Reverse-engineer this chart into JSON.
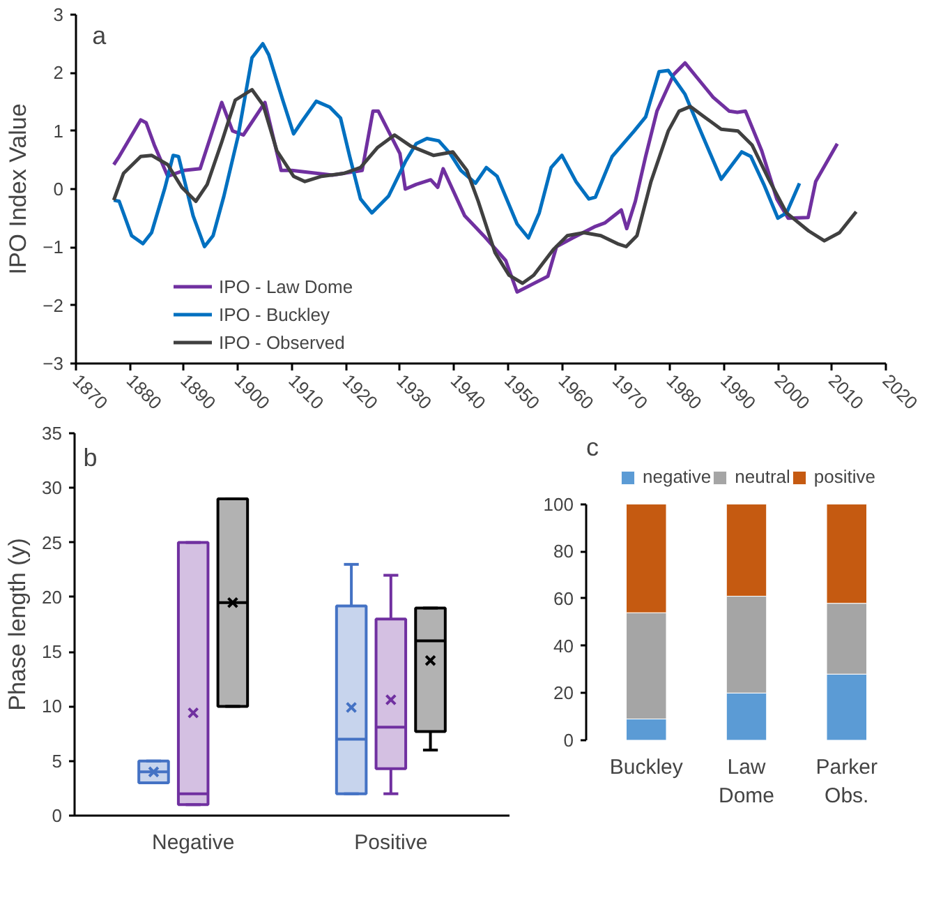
{
  "chart_data": [
    {
      "type": "line",
      "title": "a",
      "ylabel": "IPO Index Value",
      "xlim": [
        1870,
        2020
      ],
      "xticks": [
        1870,
        1880,
        1890,
        1900,
        1910,
        1920,
        1930,
        1940,
        1950,
        1960,
        1970,
        1980,
        1990,
        2000,
        2010,
        2020
      ],
      "ylim": [
        -3,
        3
      ],
      "yticks": [
        -3,
        -2,
        -1,
        0,
        1,
        2,
        3
      ],
      "legend": "bottom left",
      "series": [
        {
          "name": "IPO - Law Dome",
          "color": "#7030a0",
          "x": [
            1877,
            1878,
            1882,
            1883,
            1884.5,
            1887,
            1890,
            1893,
            1897,
            1899,
            1901,
            1905,
            1908,
            1910,
            1917.5,
            1923,
            1925,
            1926,
            1930,
            1931,
            1933,
            1935.7,
            1937,
            1938,
            1942,
            1945.5,
            1949.6,
            1951.7,
            1953.8,
            1957.4,
            1959,
            1962,
            1966,
            1968,
            1971,
            1972,
            1973.6,
            1975.5,
            1977.6,
            1980.7,
            1982.8,
            1985,
            1988,
            1991,
            1992.5,
            1994,
            1997,
            1999.8,
            2001.9,
            2005.6,
            2007,
            2011
          ],
          "values": [
            0.42,
            0.56,
            1.19,
            1.14,
            0.76,
            0.22,
            0.32,
            0.35,
            1.49,
            1.0,
            0.93,
            1.49,
            0.32,
            0.32,
            0.24,
            0.32,
            1.34,
            1.34,
            0.61,
            0,
            0.08,
            0.16,
            0.03,
            0.35,
            -0.46,
            -0.8,
            -1.23,
            -1.77,
            -1.67,
            -1.5,
            -0.99,
            -0.84,
            -0.65,
            -0.58,
            -0.36,
            -0.68,
            -0.21,
            0.56,
            1.34,
            1.97,
            2.17,
            1.92,
            1.58,
            1.34,
            1.32,
            1.34,
            0.66,
            -0.17,
            -0.5,
            -0.49,
            0.13,
            0.78
          ]
        },
        {
          "name": "IPO - Buckley",
          "color": "#0070c0",
          "x": [
            1877,
            1878,
            1880.3,
            1882.4,
            1884,
            1886.5,
            1888,
            1889,
            1891.7,
            1893.8,
            1895.4,
            1897.4,
            1900,
            1902.6,
            1904.6,
            1905.7,
            1908.3,
            1910.3,
            1911.9,
            1914.5,
            1917,
            1919,
            1920.7,
            1922.7,
            1924.8,
            1927.9,
            1931,
            1933,
            1935,
            1937.2,
            1939.3,
            1941.3,
            1944,
            1946,
            1948,
            1951.7,
            1953.8,
            1955.8,
            1958,
            1960,
            1962.6,
            1965,
            1966.2,
            1969.3,
            1973.4,
            1975.5,
            1978,
            1979.7,
            1982.8,
            1985.9,
            1989.5,
            1993.3,
            1995,
            1997.4,
            2000,
            2001.6,
            2004
          ],
          "values": [
            -0.19,
            -0.21,
            -0.8,
            -0.94,
            -0.75,
            0.03,
            0.58,
            0.56,
            -0.46,
            -0.99,
            -0.8,
            -0.12,
            0.9,
            2.26,
            2.5,
            2.31,
            1.53,
            0.95,
            1.17,
            1.51,
            1.41,
            1.22,
            0.56,
            -0.17,
            -0.41,
            -0.12,
            0.47,
            0.78,
            0.87,
            0.83,
            0.61,
            0.32,
            0.1,
            0.37,
            0.22,
            -0.6,
            -0.84,
            -0.41,
            0.37,
            0.58,
            0.13,
            -0.17,
            -0.14,
            0.56,
            1.0,
            1.24,
            2.02,
            2.04,
            1.63,
            0.95,
            0.17,
            0.64,
            0.56,
            0.08,
            -0.5,
            -0.41,
            0.1
          ]
        },
        {
          "name": "IPO - Observed",
          "color": "#404040",
          "x": [
            1877,
            1878.8,
            1882,
            1884,
            1887,
            1889.6,
            1892.2,
            1894.3,
            1897,
            1899.5,
            1902.6,
            1904.7,
            1907.2,
            1910.3,
            1912.4,
            1915.5,
            1919.6,
            1922.7,
            1925.8,
            1929,
            1932,
            1936.2,
            1939.8,
            1942.4,
            1944.5,
            1947.6,
            1950.2,
            1952.7,
            1954.8,
            1958.4,
            1961,
            1964.1,
            1967.2,
            1970.3,
            1971.9,
            1973.9,
            1976.5,
            1979.7,
            1981.7,
            1983.8,
            1986.4,
            1989.5,
            1992.6,
            1995.2,
            1998.3,
            2001.6,
            2005.7,
            2008.6,
            2011.4,
            2014.5
          ],
          "values": [
            -0.19,
            0.27,
            0.56,
            0.58,
            0.42,
            0.03,
            -0.21,
            0.08,
            0.81,
            1.53,
            1.71,
            1.44,
            0.66,
            0.22,
            0.13,
            0.22,
            0.27,
            0.37,
            0.71,
            0.93,
            0.74,
            0.58,
            0.64,
            0.32,
            -0.21,
            -1.09,
            -1.48,
            -1.62,
            -1.48,
            -1.04,
            -0.8,
            -0.75,
            -0.8,
            -0.94,
            -0.99,
            -0.8,
            0.13,
            1.0,
            1.34,
            1.42,
            1.24,
            1.03,
            1.0,
            0.76,
            0.17,
            -0.41,
            -0.72,
            -0.89,
            -0.75,
            -0.39
          ]
        }
      ]
    },
    {
      "type": "box",
      "title": "b",
      "ylabel": "Phase length (y)",
      "categories": [
        "Negative",
        "Positive"
      ],
      "ylim": [
        0,
        35
      ],
      "yticks": [
        0,
        5,
        10,
        15,
        20,
        25,
        30,
        35
      ],
      "series": [
        {
          "color": "#4472c4",
          "boxes": [
            {
              "low": 3,
              "q1": 3,
              "median": 4,
              "q3": 5,
              "high": 5,
              "mean": 4
            },
            {
              "low": 2,
              "q1": 2,
              "median": 7,
              "q3": 19.2,
              "high": 23,
              "mean": 9.9
            }
          ]
        },
        {
          "color": "#7030a0",
          "boxes": [
            {
              "low": 1,
              "q1": 1,
              "median": 2,
              "q3": 25,
              "high": 25,
              "mean": 9.4
            },
            {
              "low": 2,
              "q1": 4.3,
              "median": 8.1,
              "q3": 18,
              "high": 22,
              "mean": 10.6
            }
          ]
        },
        {
          "color": "#000000",
          "boxes": [
            {
              "low": 10,
              "q1": 10,
              "median": 19.5,
              "q3": 29,
              "high": 29,
              "mean": 19.5
            },
            {
              "low": 6,
              "q1": 7.7,
              "median": 16,
              "q3": 19,
              "high": 19,
              "mean": 14.2
            }
          ]
        }
      ]
    },
    {
      "type": "bar",
      "title": "c",
      "stacked": true,
      "categories": [
        "Buckley",
        "Law\nDome",
        "Parker\nObs."
      ],
      "ylim": [
        0,
        100
      ],
      "yticks": [
        0,
        20,
        40,
        60,
        80,
        100
      ],
      "legend": "top",
      "series": [
        {
          "name": "negative",
          "color": "#5b9bd5",
          "values": [
            9,
            20,
            28
          ]
        },
        {
          "name": "neutral",
          "color": "#a5a5a5",
          "values": [
            45,
            41,
            30
          ]
        },
        {
          "name": "positive",
          "color": "#c55a11",
          "values": [
            46,
            39,
            42
          ]
        }
      ]
    }
  ]
}
